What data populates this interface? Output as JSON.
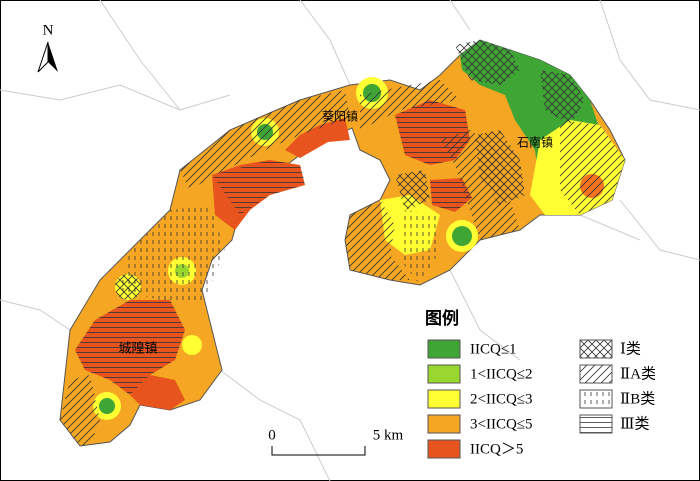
{
  "north": "N",
  "places": [
    "葵阳镇",
    "石南镇",
    "城隍镇"
  ],
  "legend": {
    "title": "图例",
    "classes": [
      "IICQ≤1",
      "1<IICQ≤2",
      "2<IICQ≤3",
      "3<IICQ≤5",
      "IICQ＞5"
    ],
    "types": [
      "Ⅰ类",
      "ⅡA类",
      "ⅡB类",
      "Ⅲ类"
    ]
  },
  "scale": {
    "start": "0",
    "end": "5 km"
  }
}
